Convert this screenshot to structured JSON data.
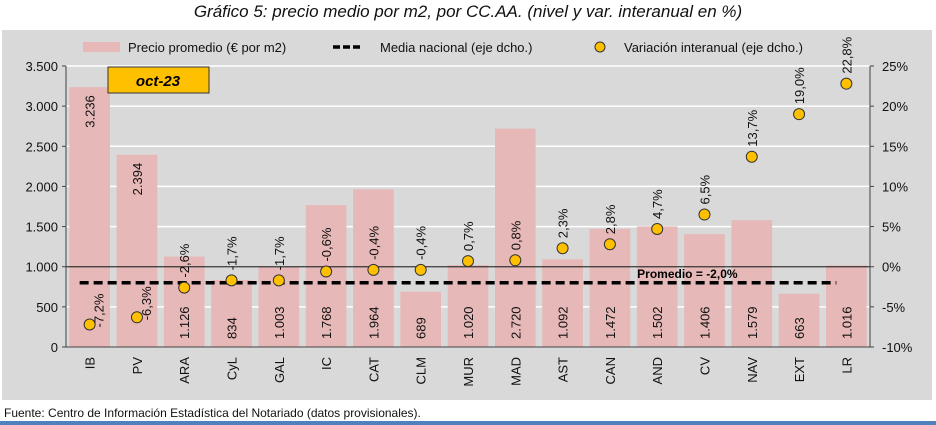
{
  "chart_data": {
    "type": "bar",
    "title": "Gráfico 5: precio medio por m2, por CC.AA. (nivel y var. interanual en %)",
    "badge": "oct-23",
    "categories": [
      "IB",
      "PV",
      "ARA",
      "CyL",
      "GAL",
      "IC",
      "CAT",
      "CLM",
      "MUR",
      "MAD",
      "AST",
      "CAN",
      "AND",
      "CV",
      "NAV",
      "EXT",
      "LR"
    ],
    "series": [
      {
        "name": "Precio promedio (€ por m2)",
        "type": "bar",
        "axis": "left",
        "color": "#e6b8b7",
        "values": [
          3236,
          2394,
          1126,
          834,
          1003,
          1768,
          1964,
          689,
          1020,
          2720,
          1092,
          1472,
          1502,
          1406,
          1579,
          663,
          1016
        ],
        "labels": [
          "3.236",
          "2.394",
          "1.126",
          "834",
          "1.003",
          "1.768",
          "1.964",
          "689",
          "1.020",
          "2.720",
          "1.092",
          "1.472",
          "1.502",
          "1.406",
          "1.579",
          "663",
          "1.016"
        ]
      },
      {
        "name": "Variación interanual (eje dcho.)",
        "type": "scatter",
        "axis": "right",
        "color": "#ffc000",
        "values": [
          -7.2,
          -6.3,
          -2.6,
          -1.7,
          -1.7,
          -0.6,
          -0.4,
          -0.4,
          0.7,
          0.8,
          2.3,
          2.8,
          4.7,
          6.5,
          13.7,
          19.0,
          22.8
        ],
        "labels": [
          "-7,2%",
          "-6,3%",
          "-2,6%",
          "-1,7%",
          "-1,7%",
          "-0,6%",
          "-0,4%",
          "-0,4%",
          "0,7%",
          "0,8%",
          "2,3%",
          "2,8%",
          "4,7%",
          "6,5%",
          "13,7%",
          "19,0%",
          "22,8%"
        ]
      },
      {
        "name": "Media nacional (eje dcho.)",
        "type": "line",
        "axis": "right",
        "color": "#000000",
        "value": -2.0,
        "label": "Promedio = -2,0%"
      }
    ],
    "left_axis": {
      "ylim": [
        0,
        3500
      ],
      "ticks": [
        0,
        500,
        1000,
        1500,
        2000,
        2500,
        3000,
        3500
      ],
      "tick_labels": [
        "0",
        "500",
        "1.000",
        "1.500",
        "2.000",
        "2.500",
        "3.000",
        "3.500"
      ]
    },
    "right_axis": {
      "ylim": [
        -10,
        25
      ],
      "ticks": [
        -10,
        -5,
        0,
        5,
        10,
        15,
        20,
        25
      ],
      "tick_labels": [
        "-10%",
        "-5%",
        "0%",
        "5%",
        "10%",
        "15%",
        "20%",
        "25%"
      ]
    },
    "legend": "top",
    "grid": true
  },
  "footer": "Fuente: Centro de Información Estadística del Notariado (datos provisionales)."
}
